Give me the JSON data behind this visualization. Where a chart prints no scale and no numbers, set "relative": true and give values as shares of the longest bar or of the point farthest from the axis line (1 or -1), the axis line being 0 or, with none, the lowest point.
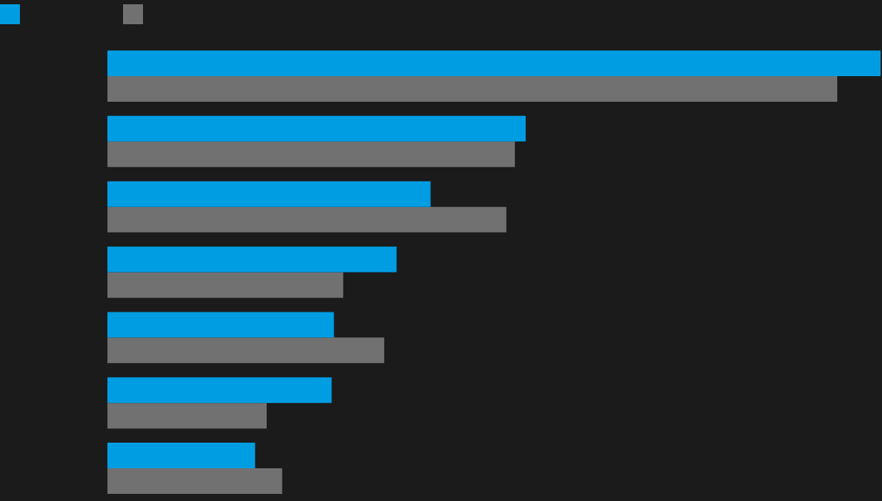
{
  "chart_data": {
    "type": "bar",
    "orientation": "horizontal",
    "relative": true,
    "categories": [
      null,
      null,
      null,
      null,
      null,
      null,
      null
    ],
    "series": [
      {
        "color": "#009de3",
        "values": [
          1.0,
          0.541,
          0.418,
          0.374,
          0.293,
          0.29,
          0.191
        ]
      },
      {
        "color": "#717171",
        "values": [
          0.944,
          0.527,
          0.516,
          0.305,
          0.358,
          0.206,
          0.226
        ]
      }
    ]
  }
}
